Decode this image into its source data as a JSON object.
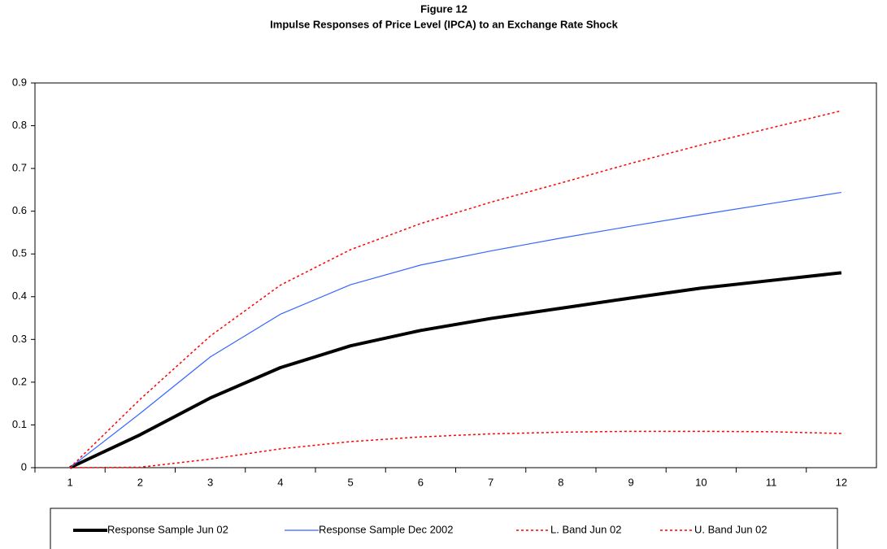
{
  "chart_data": {
    "type": "line",
    "title": "Figure 12",
    "subtitle": "Impulse Responses of Price Level (IPCA) to an Exchange Rate Shock",
    "categories": [
      1,
      2,
      3,
      4,
      5,
      6,
      7,
      8,
      9,
      10,
      11,
      12
    ],
    "series": [
      {
        "name": "Response Sample Jun 02",
        "color": "#000000",
        "line_width": 4,
        "dashed": false,
        "values": [
          0,
          0.077,
          0.163,
          0.234,
          0.285,
          0.321,
          0.349,
          0.373,
          0.397,
          0.42,
          0.438,
          0.456
        ]
      },
      {
        "name": "Response Sample Dec 2002",
        "color": "#3366ff",
        "line_width": 1.2,
        "dashed": false,
        "values": [
          0,
          0.127,
          0.259,
          0.359,
          0.428,
          0.474,
          0.507,
          0.537,
          0.565,
          0.592,
          0.618,
          0.644
        ]
      },
      {
        "name": "L. Band Jun 02",
        "color": "#ff0000",
        "line_width": 1.5,
        "dashed": true,
        "values": [
          0,
          0.001,
          0.02,
          0.044,
          0.061,
          0.072,
          0.079,
          0.083,
          0.085,
          0.085,
          0.084,
          0.08
        ]
      },
      {
        "name": "U. Band Jun 02",
        "color": "#ff0000",
        "line_width": 1.5,
        "dashed": true,
        "values": [
          0,
          0.16,
          0.308,
          0.427,
          0.51,
          0.571,
          0.621,
          0.666,
          0.712,
          0.755,
          0.795,
          0.835
        ]
      }
    ],
    "ylim": [
      0,
      0.9
    ],
    "yticks": [
      0,
      0.1,
      0.2,
      0.3,
      0.4,
      0.5,
      0.6,
      0.7,
      0.8,
      0.9
    ],
    "grid": false,
    "legend": "bottom"
  }
}
